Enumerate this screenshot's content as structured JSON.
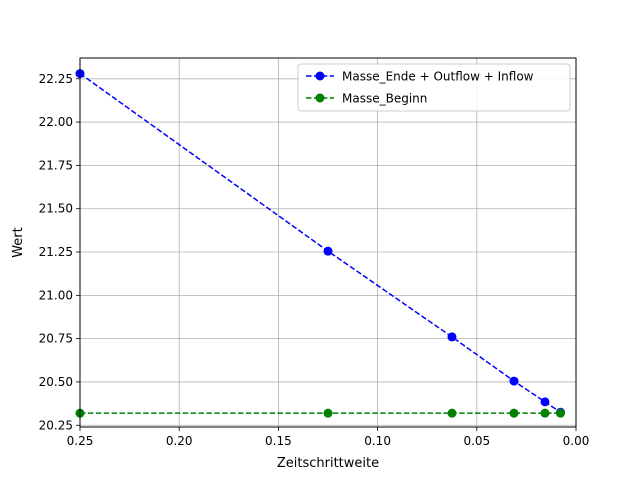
{
  "chart_data": {
    "type": "line",
    "title": "",
    "xlabel": "Zeitschrittweite",
    "ylabel": "Wert",
    "xlim": [
      0.25,
      0.0
    ],
    "ylim": [
      20.24,
      22.37
    ],
    "x_inverted": true,
    "grid": true,
    "legend_position": "top-right",
    "x_ticks": [
      0.25,
      0.2,
      0.15,
      0.1,
      0.05,
      0.0
    ],
    "x_tick_labels": [
      "0.25",
      "0.20",
      "0.15",
      "0.10",
      "0.05",
      "0.00"
    ],
    "y_ticks": [
      20.25,
      20.5,
      20.75,
      21.0,
      21.25,
      21.5,
      21.75,
      22.0,
      22.25
    ],
    "y_tick_labels": [
      "20.25",
      "20.50",
      "20.75",
      "21.00",
      "21.25",
      "21.50",
      "21.75",
      "22.00",
      "22.25"
    ],
    "x": [
      0.25,
      0.125,
      0.0625,
      0.03125,
      0.015625,
      0.0078125
    ],
    "series": [
      {
        "name": "Masse_Ende + Outflow + Inflow",
        "color": "#0000ff",
        "values": [
          22.28,
          21.255,
          20.76,
          20.505,
          20.385,
          20.325
        ]
      },
      {
        "name": "Masse_Beginn",
        "color": "#008000",
        "values": [
          20.32,
          20.32,
          20.32,
          20.32,
          20.32,
          20.32
        ]
      }
    ]
  }
}
